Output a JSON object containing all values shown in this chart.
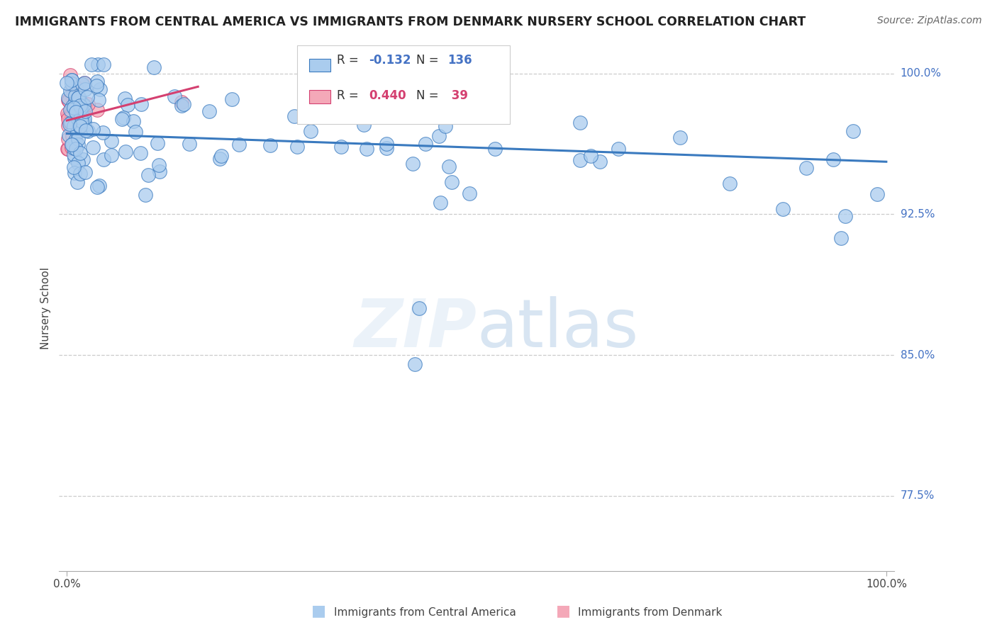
{
  "title": "IMMIGRANTS FROM CENTRAL AMERICA VS IMMIGRANTS FROM DENMARK NURSERY SCHOOL CORRELATION CHART",
  "source": "Source: ZipAtlas.com",
  "ylabel": "Nursery School",
  "ytick_labels": [
    "100.0%",
    "92.5%",
    "85.0%",
    "77.5%"
  ],
  "ytick_values": [
    1.0,
    0.925,
    0.85,
    0.775
  ],
  "xlim": [
    -0.01,
    1.01
  ],
  "ylim": [
    0.735,
    1.015
  ],
  "legend_blue_R": "-0.132",
  "legend_blue_N": "136",
  "legend_pink_R": "0.440",
  "legend_pink_N": "39",
  "blue_color": "#aaccee",
  "pink_color": "#f4a8b8",
  "trendline_blue_color": "#3a7abf",
  "trendline_pink_color": "#d44070",
  "blue_trend_x0": 0.0,
  "blue_trend_x1": 1.0,
  "blue_trend_y0": 0.968,
  "blue_trend_y1": 0.953,
  "pink_trend_x0": 0.0,
  "pink_trend_x1": 0.16,
  "pink_trend_y0": 0.975,
  "pink_trend_y1": 0.993
}
